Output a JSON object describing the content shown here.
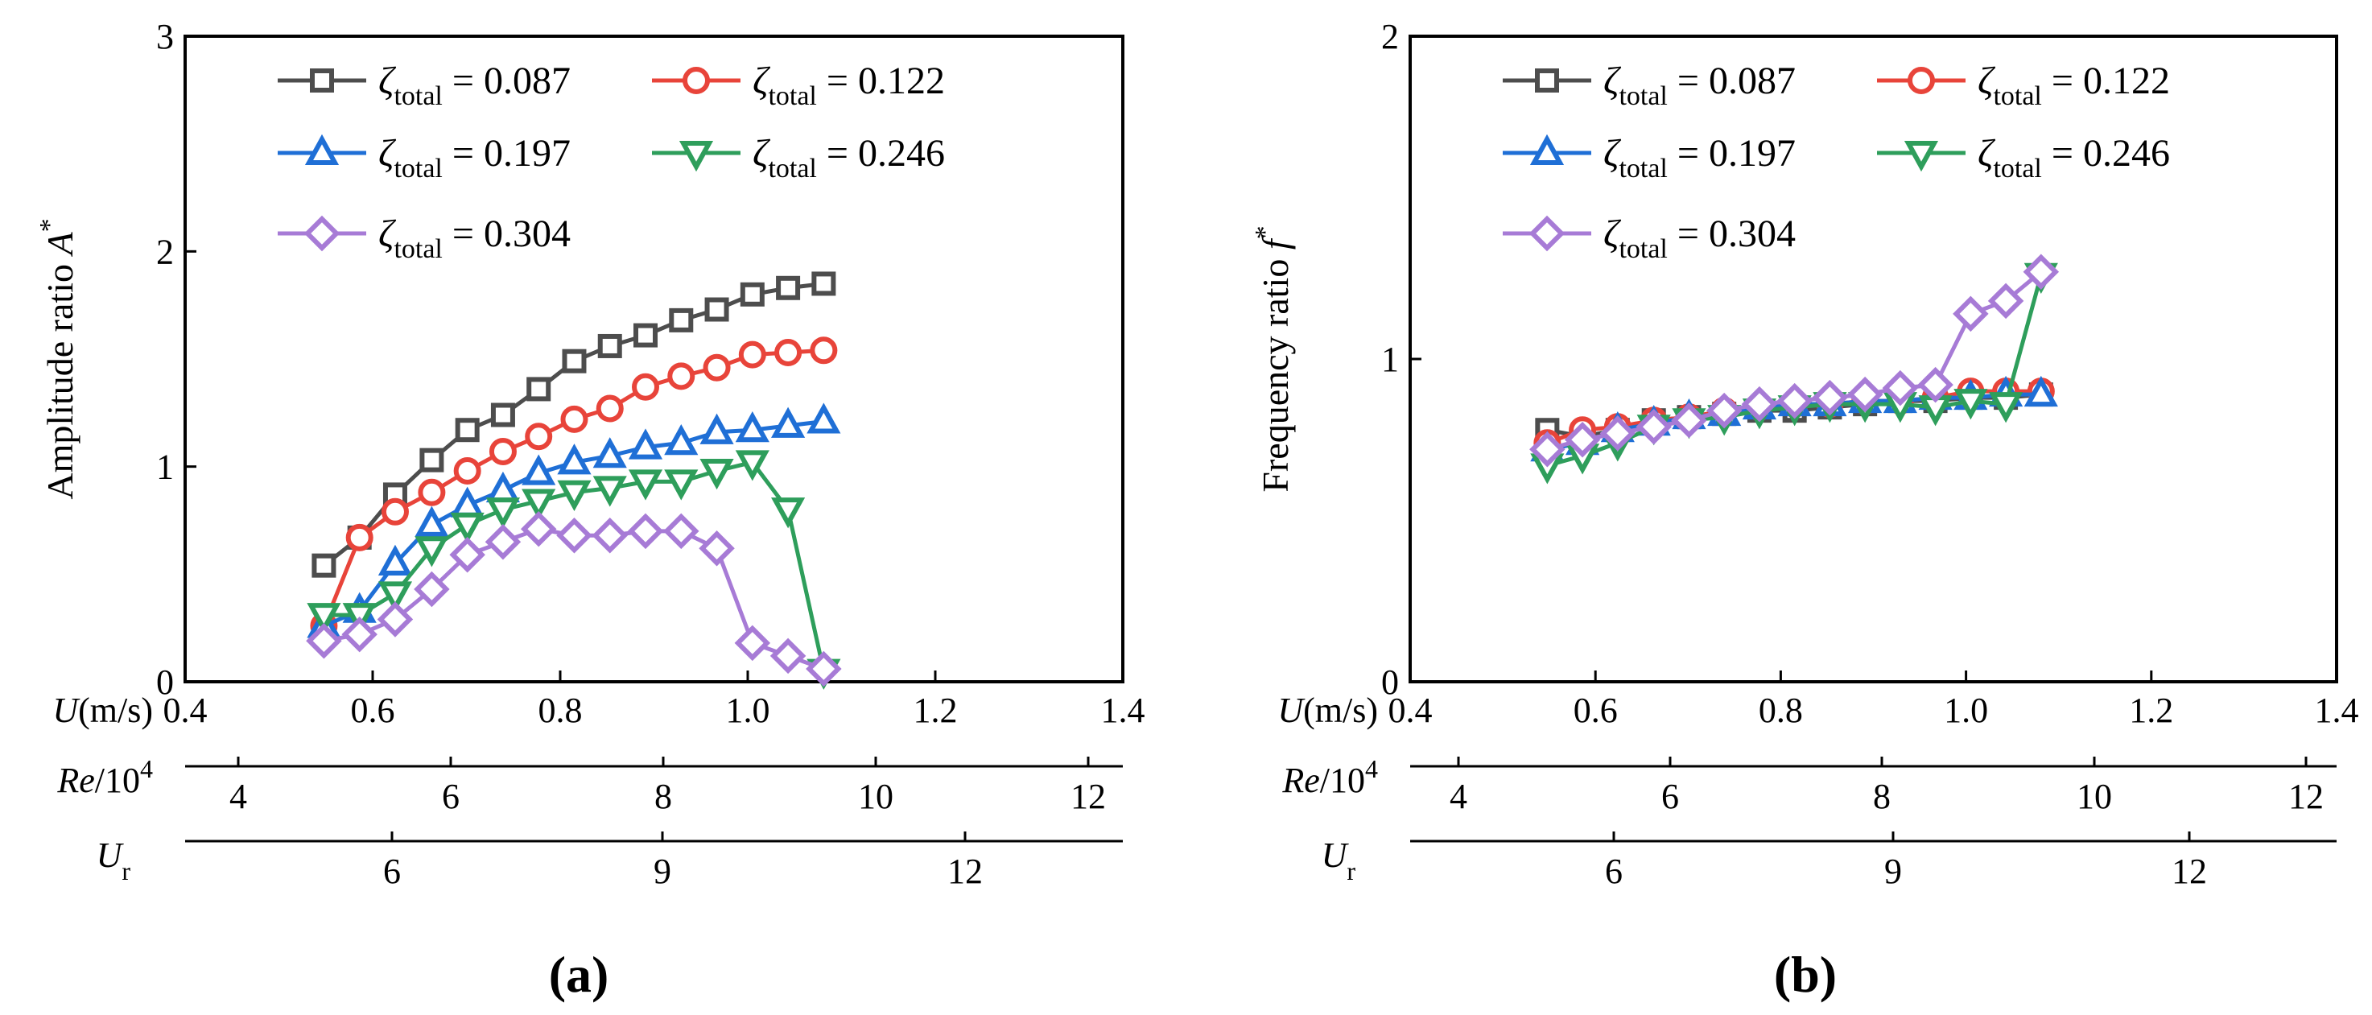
{
  "panels": [
    {
      "id": "a",
      "panel_label": "a",
      "ylabel": "Amplitude ratio",
      "ylabel_symbol": "A",
      "ylabel_superscript": "*"
    },
    {
      "id": "b",
      "panel_label": "b",
      "ylabel": "Frequency ratio",
      "ylabel_symbol": "f",
      "ylabel_superscript": "*"
    }
  ],
  "axis_labels": {
    "U": {
      "main": "U",
      "rest": "(m/s)"
    },
    "Re": {
      "main": "Re",
      "rest": "/10",
      "sup": "4"
    },
    "Ur": {
      "main": "U",
      "sub": "r"
    }
  },
  "legend_symbol": {
    "letter": "ζ",
    "sub": "total",
    "eq": " = "
  },
  "chart_data": [
    {
      "type": "line",
      "panel": "a",
      "xlabel": "U(m/s)",
      "ylabel": "Amplitude ratio A*",
      "xlim": [
        0.4,
        1.4
      ],
      "ylim": [
        0,
        3
      ],
      "xticks": [
        "0.4",
        "0.6",
        "0.8",
        "1.0",
        "1.2",
        "1.4"
      ],
      "yticks": [
        "0",
        "1",
        "2",
        "3"
      ],
      "secondary_axes": [
        {
          "label": "Re/10^4",
          "ticks": [
            "4",
            "6",
            "8",
            "10",
            "12"
          ]
        },
        {
          "label": "U_r",
          "ticks": [
            "6",
            "9",
            "12"
          ]
        }
      ],
      "x": [
        0.548,
        0.586,
        0.624,
        0.663,
        0.701,
        0.739,
        0.777,
        0.815,
        0.853,
        0.891,
        0.929,
        0.967,
        1.005,
        1.043,
        1.081
      ],
      "series": [
        {
          "name": "0.087",
          "marker": "square",
          "color": "#4d4d4d",
          "values": [
            0.54,
            0.67,
            0.87,
            1.03,
            1.17,
            1.24,
            1.36,
            1.49,
            1.56,
            1.61,
            1.68,
            1.73,
            1.8,
            1.83,
            1.85
          ]
        },
        {
          "name": "0.122",
          "marker": "circle",
          "color": "#e8443a",
          "values": [
            0.26,
            0.67,
            0.79,
            0.88,
            0.98,
            1.07,
            1.14,
            1.22,
            1.27,
            1.37,
            1.42,
            1.46,
            1.52,
            1.53,
            1.54
          ]
        },
        {
          "name": "0.197",
          "marker": "triangle-up",
          "color": "#1f6fd6",
          "values": [
            0.26,
            0.33,
            0.55,
            0.73,
            0.82,
            0.89,
            0.97,
            1.02,
            1.05,
            1.09,
            1.11,
            1.16,
            1.17,
            1.19,
            1.21
          ]
        },
        {
          "name": "0.246",
          "marker": "triangle-down",
          "color": "#2e9e5b",
          "values": [
            0.31,
            0.31,
            0.41,
            0.62,
            0.73,
            0.8,
            0.84,
            0.88,
            0.9,
            0.93,
            0.93,
            0.98,
            1.02,
            0.8,
            0.05
          ]
        },
        {
          "name": "0.304",
          "marker": "diamond",
          "color": "#a77bd6",
          "values": [
            0.19,
            0.22,
            0.29,
            0.43,
            0.59,
            0.65,
            0.71,
            0.68,
            0.68,
            0.7,
            0.7,
            0.62,
            0.18,
            0.12,
            0.06
          ]
        }
      ]
    },
    {
      "type": "line",
      "panel": "b",
      "xlabel": "U(m/s)",
      "ylabel": "Frequency ratio f*",
      "xlim": [
        0.4,
        1.4
      ],
      "ylim": [
        0,
        2
      ],
      "xticks": [
        "0.4",
        "0.6",
        "0.8",
        "1.0",
        "1.2",
        "1.4"
      ],
      "yticks": [
        "0",
        "1",
        "2"
      ],
      "secondary_axes": [
        {
          "label": "Re/10^4",
          "ticks": [
            "4",
            "6",
            "8",
            "10",
            "12"
          ]
        },
        {
          "label": "U_r",
          "ticks": [
            "6",
            "9",
            "12"
          ]
        }
      ],
      "x": [
        0.548,
        0.586,
        0.624,
        0.663,
        0.701,
        0.739,
        0.777,
        0.815,
        0.853,
        0.891,
        0.929,
        0.967,
        1.005,
        1.043,
        1.081
      ],
      "series": [
        {
          "name": "0.087",
          "marker": "square",
          "color": "#4d4d4d",
          "values": [
            0.78,
            0.76,
            0.78,
            0.81,
            0.82,
            0.83,
            0.84,
            0.84,
            0.85,
            0.86,
            0.87,
            0.87,
            0.88,
            0.88,
            0.89
          ]
        },
        {
          "name": "0.122",
          "marker": "circle",
          "color": "#e8443a",
          "values": [
            0.74,
            0.78,
            0.79,
            0.81,
            0.82,
            0.84,
            0.85,
            0.86,
            0.86,
            0.87,
            0.87,
            0.88,
            0.9,
            0.9,
            0.9
          ]
        },
        {
          "name": "0.197",
          "marker": "triangle-up",
          "color": "#1f6fd6",
          "values": [
            0.72,
            0.74,
            0.78,
            0.8,
            0.82,
            0.83,
            0.85,
            0.86,
            0.86,
            0.87,
            0.87,
            0.88,
            0.88,
            0.89,
            0.89
          ]
        },
        {
          "name": "0.246",
          "marker": "triangle-down",
          "color": "#2e9e5b",
          "values": [
            0.67,
            0.7,
            0.74,
            0.79,
            0.81,
            0.82,
            0.84,
            0.85,
            0.86,
            0.86,
            0.86,
            0.85,
            0.87,
            0.86,
            1.26
          ]
        },
        {
          "name": "0.304",
          "marker": "diamond",
          "color": "#a77bd6",
          "values": [
            0.72,
            0.75,
            0.77,
            0.79,
            0.81,
            0.84,
            0.86,
            0.87,
            0.88,
            0.89,
            0.91,
            0.92,
            1.14,
            1.18,
            1.27
          ]
        }
      ]
    }
  ]
}
